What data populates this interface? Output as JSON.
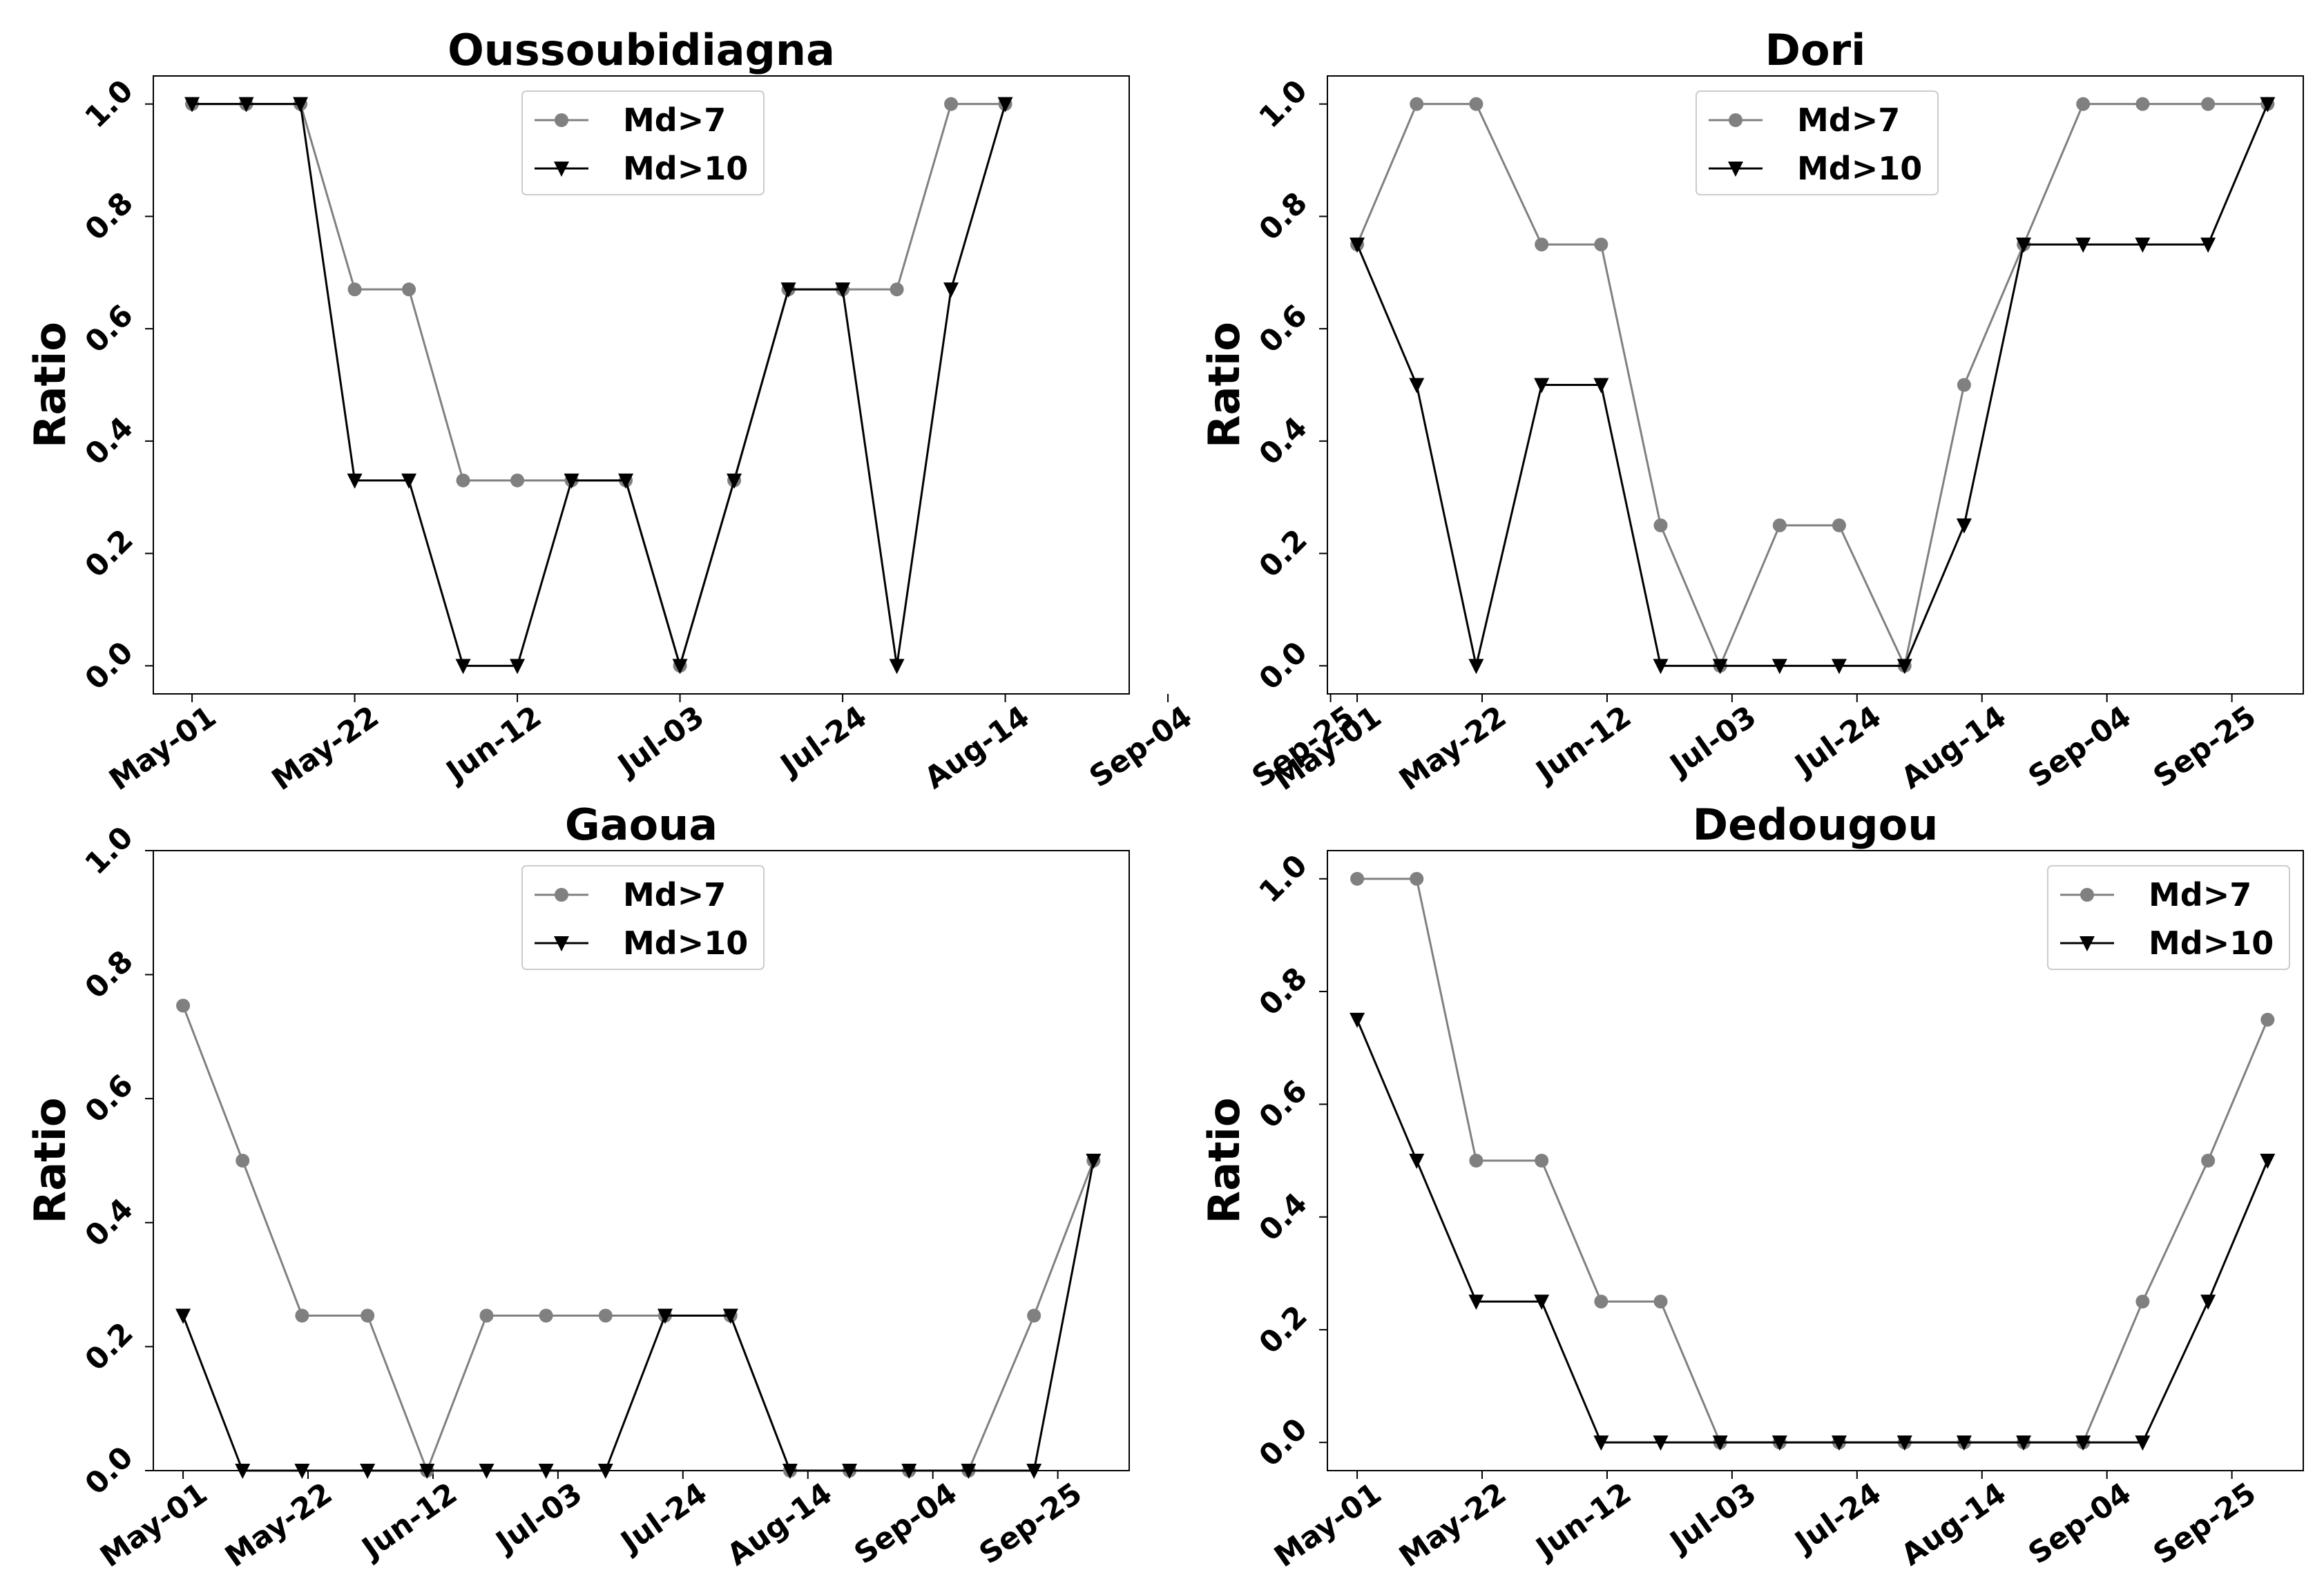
{
  "chart_data": [
    {
      "type": "line",
      "title": "Oussoubidiagna",
      "ylabel": "Ratio",
      "xlabel": "",
      "x": [
        0,
        7,
        14,
        21,
        28,
        35,
        42,
        49,
        56,
        63,
        70,
        77,
        84,
        91,
        98,
        105,
        112,
        119
      ],
      "xticks": [
        0,
        21,
        42,
        63,
        84,
        105,
        126,
        147
      ],
      "xtick_labels": [
        "May-01",
        "May-22",
        "Jun-12",
        "Jul-03",
        "Jul-24",
        "Aug-14",
        "Sep-04",
        "Sep-25"
      ],
      "ylim": [
        -0.05,
        1.05
      ],
      "yticks": [
        0.0,
        0.2,
        0.4,
        0.6,
        0.8,
        1.0
      ],
      "ytick_labels": [
        "0.0",
        "0.2",
        "0.4",
        "0.6",
        "0.8",
        "1.0"
      ],
      "legend_position": "top-center",
      "series": [
        {
          "name": "Md>7",
          "marker": "circle",
          "color": "#808080",
          "x": [
            0,
            7,
            14,
            21,
            28,
            35,
            42,
            49,
            56,
            63,
            70,
            77,
            84,
            91,
            98,
            105
          ],
          "values": [
            1.0,
            1.0,
            1.0,
            0.67,
            0.67,
            0.33,
            0.33,
            0.33,
            0.33,
            0.0,
            0.33,
            0.67,
            0.67,
            0.67,
            1.0,
            1.0
          ]
        },
        {
          "name": "Md>10",
          "marker": "triangle-down",
          "color": "#000000",
          "x": [
            0,
            7,
            14,
            21,
            28,
            35,
            42,
            49,
            56,
            63,
            70,
            77,
            84,
            91,
            98,
            105
          ],
          "values": [
            1.0,
            1.0,
            1.0,
            0.33,
            0.33,
            0.0,
            0.0,
            0.33,
            0.33,
            0.0,
            0.33,
            0.67,
            0.67,
            0.0,
            0.67,
            1.0
          ]
        }
      ]
    },
    {
      "type": "line",
      "title": "Dori",
      "ylabel": "Ratio",
      "xlabel": "",
      "xticks": [
        0,
        21,
        42,
        63,
        84,
        105,
        126,
        147
      ],
      "xtick_labels": [
        "May-01",
        "May-22",
        "Jun-12",
        "Jul-03",
        "Jul-24",
        "Aug-14",
        "Sep-04",
        "Sep-25"
      ],
      "ylim": [
        -0.05,
        1.05
      ],
      "yticks": [
        0.0,
        0.2,
        0.4,
        0.6,
        0.8,
        1.0
      ],
      "ytick_labels": [
        "0.0",
        "0.2",
        "0.4",
        "0.6",
        "0.8",
        "1.0"
      ],
      "legend_position": "top-center",
      "series": [
        {
          "name": "Md>7",
          "marker": "circle",
          "color": "#808080",
          "x": [
            0,
            10,
            20,
            31,
            41,
            51,
            61,
            71,
            81,
            92,
            102,
            112,
            122,
            132,
            143,
            153
          ],
          "values": [
            0.75,
            1.0,
            1.0,
            0.75,
            0.75,
            0.25,
            0.0,
            0.25,
            0.25,
            0.0,
            0.5,
            0.75,
            1.0,
            1.0,
            1.0,
            1.0
          ]
        },
        {
          "name": "Md>10",
          "marker": "triangle-down",
          "color": "#000000",
          "x": [
            0,
            10,
            20,
            31,
            41,
            51,
            61,
            71,
            81,
            92,
            102,
            112,
            122,
            132,
            143,
            153
          ],
          "values": [
            0.75,
            0.5,
            0.0,
            0.5,
            0.5,
            0.0,
            0.0,
            0.0,
            0.0,
            0.0,
            0.25,
            0.75,
            0.75,
            0.75,
            0.75,
            1.0
          ]
        }
      ]
    },
    {
      "type": "line",
      "title": "Gaoua",
      "ylabel": "Ratio",
      "xlabel": "",
      "xticks": [
        0,
        21,
        42,
        63,
        84,
        105,
        126,
        147
      ],
      "xtick_labels": [
        "May-01",
        "May-22",
        "Jun-12",
        "Jul-03",
        "Jul-24",
        "Aug-14",
        "Sep-04",
        "Sep-25"
      ],
      "ylim": [
        0.0,
        1.0
      ],
      "yticks": [
        0.0,
        0.2,
        0.4,
        0.6,
        0.8,
        1.0
      ],
      "ytick_labels": [
        "0.0",
        "0.2",
        "0.4",
        "0.6",
        "0.8",
        "1.0"
      ],
      "legend_position": "top-center",
      "series": [
        {
          "name": "Md>7",
          "marker": "circle",
          "color": "#808080",
          "x": [
            0,
            10,
            20,
            31,
            41,
            51,
            61,
            71,
            81,
            92,
            102,
            112,
            122,
            132,
            143,
            153
          ],
          "values": [
            0.75,
            0.5,
            0.25,
            0.25,
            0.0,
            0.25,
            0.25,
            0.25,
            0.25,
            0.25,
            0.0,
            0.0,
            0.0,
            0.0,
            0.25,
            0.5
          ]
        },
        {
          "name": "Md>10",
          "marker": "triangle-down",
          "color": "#000000",
          "x": [
            0,
            10,
            20,
            31,
            41,
            51,
            61,
            71,
            81,
            92,
            102,
            112,
            122,
            132,
            143,
            153
          ],
          "values": [
            0.25,
            0.0,
            0.0,
            0.0,
            0.0,
            0.0,
            0.0,
            0.0,
            0.25,
            0.25,
            0.0,
            0.0,
            0.0,
            0.0,
            0.0,
            0.5
          ]
        }
      ]
    },
    {
      "type": "line",
      "title": "Dedougou",
      "ylabel": "Ratio",
      "xlabel": "",
      "xticks": [
        0,
        21,
        42,
        63,
        84,
        105,
        126,
        147
      ],
      "xtick_labels": [
        "May-01",
        "May-22",
        "Jun-12",
        "Jul-03",
        "Jul-24",
        "Aug-14",
        "Sep-04",
        "Sep-25"
      ],
      "ylim": [
        -0.05,
        1.05
      ],
      "yticks": [
        0.0,
        0.2,
        0.4,
        0.6,
        0.8,
        1.0
      ],
      "ytick_labels": [
        "0.0",
        "0.2",
        "0.4",
        "0.6",
        "0.8",
        "1.0"
      ],
      "legend_position": "top-right",
      "series": [
        {
          "name": "Md>7",
          "marker": "circle",
          "color": "#808080",
          "x": [
            0,
            10,
            20,
            31,
            41,
            51,
            61,
            71,
            81,
            92,
            102,
            112,
            122,
            132,
            143,
            153
          ],
          "values": [
            1.0,
            1.0,
            0.5,
            0.5,
            0.25,
            0.25,
            0.0,
            0.0,
            0.0,
            0.0,
            0.0,
            0.0,
            0.0,
            0.25,
            0.5,
            0.75
          ]
        },
        {
          "name": "Md>10",
          "marker": "triangle-down",
          "color": "#000000",
          "x": [
            0,
            10,
            20,
            31,
            41,
            51,
            61,
            71,
            81,
            92,
            102,
            112,
            122,
            132,
            143,
            153
          ],
          "values": [
            0.75,
            0.5,
            0.25,
            0.25,
            0.0,
            0.0,
            0.0,
            0.0,
            0.0,
            0.0,
            0.0,
            0.0,
            0.0,
            0.0,
            0.25,
            0.5
          ]
        }
      ]
    }
  ]
}
